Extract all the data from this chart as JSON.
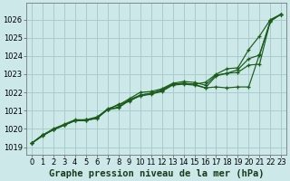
{
  "bg_color": "#cce8e8",
  "grid_color": "#aacccc",
  "line_color": "#1a5c1a",
  "xlabel": "Graphe pression niveau de la mer (hPa)",
  "xlabel_fontsize": 7.5,
  "tick_fontsize": 6,
  "ylim": [
    1018.6,
    1026.9
  ],
  "xlim": [
    -0.5,
    23.5
  ],
  "yticks": [
    1019,
    1020,
    1021,
    1022,
    1023,
    1024,
    1025,
    1026
  ],
  "xticks": [
    0,
    1,
    2,
    3,
    4,
    5,
    6,
    7,
    8,
    9,
    10,
    11,
    12,
    13,
    14,
    15,
    16,
    17,
    18,
    19,
    20,
    21,
    22,
    23
  ],
  "series": [
    [
      1019.2,
      1019.6,
      1019.95,
      1020.2,
      1020.45,
      1020.5,
      1020.55,
      1021.05,
      1021.2,
      1021.6,
      1021.85,
      1021.95,
      1022.1,
      1022.45,
      1022.5,
      1022.45,
      1022.25,
      1022.3,
      1022.25,
      1022.3,
      1022.3,
      1024.1,
      1025.9,
      1026.3
    ],
    [
      1019.2,
      1019.65,
      1019.95,
      1020.2,
      1020.45,
      1020.45,
      1020.6,
      1021.05,
      1021.15,
      1021.55,
      1021.8,
      1021.9,
      1022.05,
      1022.4,
      1022.45,
      1022.4,
      1022.25,
      1022.9,
      1023.05,
      1023.1,
      1023.5,
      1023.55,
      1025.95,
      1026.3
    ],
    [
      1019.2,
      1019.65,
      1019.95,
      1020.2,
      1020.45,
      1020.45,
      1020.6,
      1021.1,
      1021.3,
      1021.65,
      1022.0,
      1022.05,
      1022.2,
      1022.5,
      1022.6,
      1022.55,
      1022.4,
      1022.95,
      1023.05,
      1023.25,
      1023.85,
      1024.05,
      1025.95,
      1026.3
    ],
    [
      1019.2,
      1019.65,
      1020.0,
      1020.25,
      1020.5,
      1020.5,
      1020.65,
      1021.05,
      1021.35,
      1021.5,
      1021.85,
      1021.95,
      1022.15,
      1022.45,
      1022.5,
      1022.45,
      1022.55,
      1023.0,
      1023.3,
      1023.35,
      1024.35,
      1025.1,
      1026.0,
      1026.3
    ]
  ]
}
